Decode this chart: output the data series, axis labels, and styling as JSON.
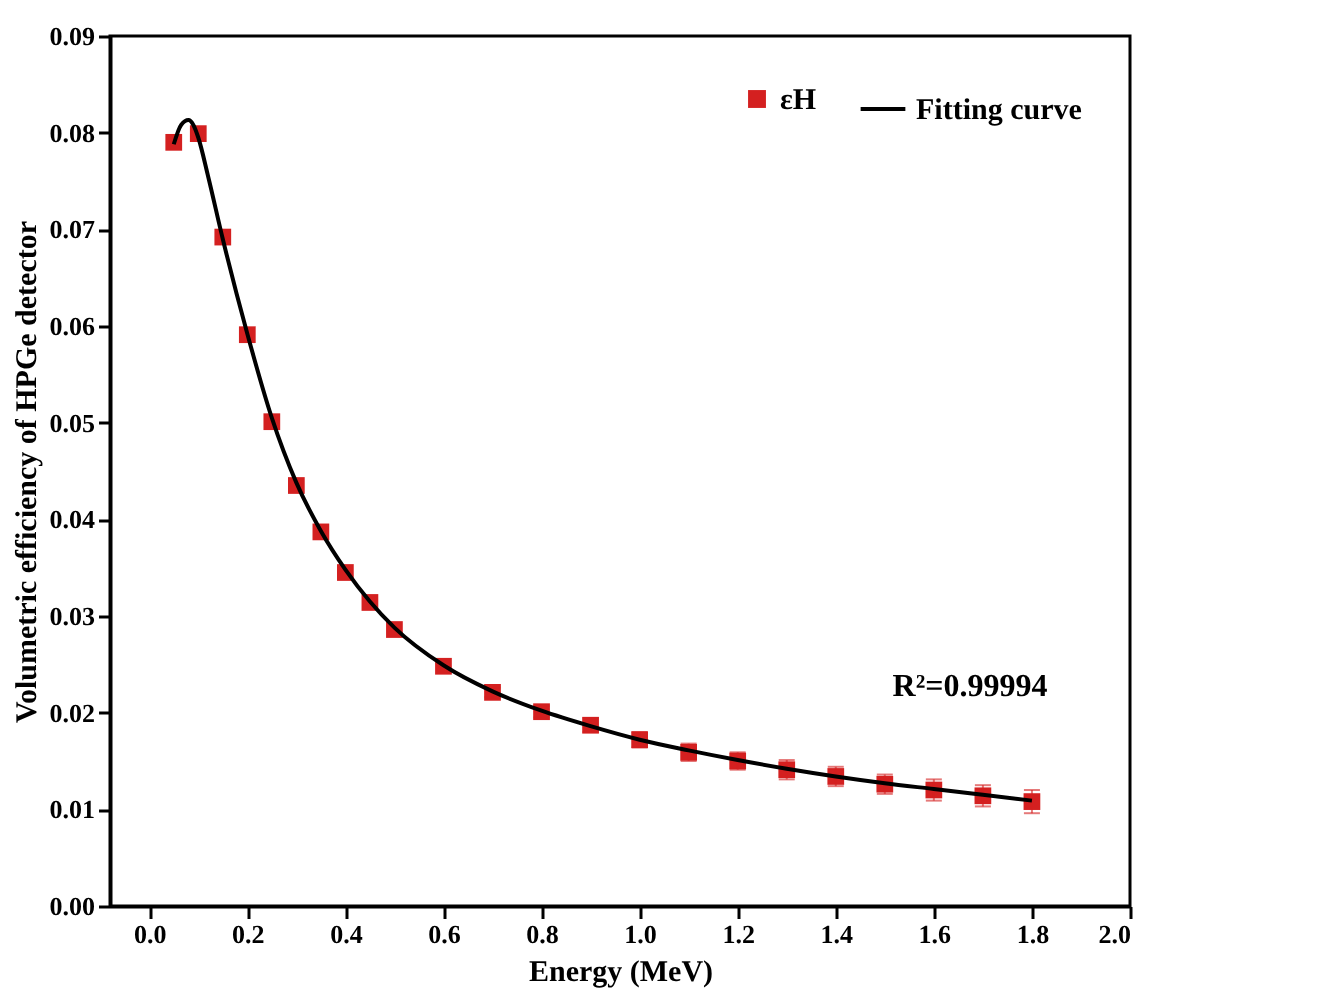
{
  "chart_data": {
    "type": "scatter",
    "xlabel": "Energy (MeV)",
    "ylabel": "Volumetric efficiency of HPGe detector",
    "xlim": [
      -0.08,
      2.0
    ],
    "ylim": [
      0,
      0.09
    ],
    "xticks": [
      {
        "value": 0,
        "label": "0.0"
      },
      {
        "value": 0.2,
        "label": "0.2"
      },
      {
        "value": 0.4,
        "label": "0.4"
      },
      {
        "value": 0.6,
        "label": "0.6"
      },
      {
        "value": 0.8,
        "label": "0.8"
      },
      {
        "value": 1,
        "label": "1.0"
      },
      {
        "value": 1.2,
        "label": "1.2"
      },
      {
        "value": 1.4,
        "label": "1.4"
      },
      {
        "value": 1.6,
        "label": "1.6"
      },
      {
        "value": 1.8,
        "label": "1.8"
      },
      {
        "value": 2,
        "label": "2.0"
      }
    ],
    "yticks": [
      {
        "value": 0,
        "label": "0.00"
      },
      {
        "value": 0.01,
        "label": "0.01"
      },
      {
        "value": 0.02,
        "label": "0.02"
      },
      {
        "value": 0.03,
        "label": "0.03"
      },
      {
        "value": 0.04,
        "label": "0.04"
      },
      {
        "value": 0.05,
        "label": "0.05"
      },
      {
        "value": 0.06,
        "label": "0.06"
      },
      {
        "value": 0.07,
        "label": "0.07"
      },
      {
        "value": 0.08,
        "label": "0.08"
      },
      {
        "value": 0.09,
        "label": "0.09"
      }
    ],
    "grid": false,
    "legend": "top right",
    "series": [
      {
        "name": "εH",
        "type": "scatter",
        "marker": "square",
        "color": "#d42020",
        "x": [
          0.05,
          0.1,
          0.15,
          0.2,
          0.25,
          0.3,
          0.35,
          0.4,
          0.45,
          0.5,
          0.6,
          0.7,
          0.8,
          0.9,
          1.0,
          1.1,
          1.2,
          1.3,
          1.4,
          1.5,
          1.6,
          1.7,
          1.8
        ],
        "values": [
          0.079,
          0.0799,
          0.0692,
          0.0591,
          0.0501,
          0.0435,
          0.0387,
          0.0345,
          0.0314,
          0.0286,
          0.0248,
          0.0221,
          0.0201,
          0.0187,
          0.0172,
          0.0159,
          0.015,
          0.0141,
          0.0134,
          0.0126,
          0.012,
          0.0114,
          0.0108
        ],
        "errors": [
          null,
          null,
          null,
          null,
          null,
          null,
          null,
          null,
          null,
          null,
          null,
          0.0005,
          0.0006,
          0.0007,
          0.0008,
          0.0009,
          0.0009,
          0.001,
          0.001,
          0.001,
          0.0011,
          0.0011,
          0.0012
        ]
      },
      {
        "name": "Fitting curve",
        "type": "line",
        "color": "#000000",
        "line_style": "solid",
        "x": [
          0.05,
          0.065,
          0.08,
          0.09,
          0.1,
          0.12,
          0.15,
          0.2,
          0.25,
          0.3,
          0.35,
          0.4,
          0.45,
          0.5,
          0.6,
          0.7,
          0.8,
          0.9,
          1.0,
          1.1,
          1.2,
          1.3,
          1.4,
          1.5,
          1.6,
          1.7,
          1.8
        ],
        "values": [
          0.0788,
          0.0808,
          0.0813,
          0.0808,
          0.0795,
          0.0755,
          0.069,
          0.0592,
          0.0505,
          0.0438,
          0.0388,
          0.0348,
          0.0315,
          0.0288,
          0.0249,
          0.0222,
          0.0202,
          0.0186,
          0.0172,
          0.0161,
          0.0151,
          0.0142,
          0.0134,
          0.0127,
          0.0121,
          0.0115,
          0.0109
        ]
      }
    ],
    "annotations": [
      "R²=0.99994"
    ]
  }
}
